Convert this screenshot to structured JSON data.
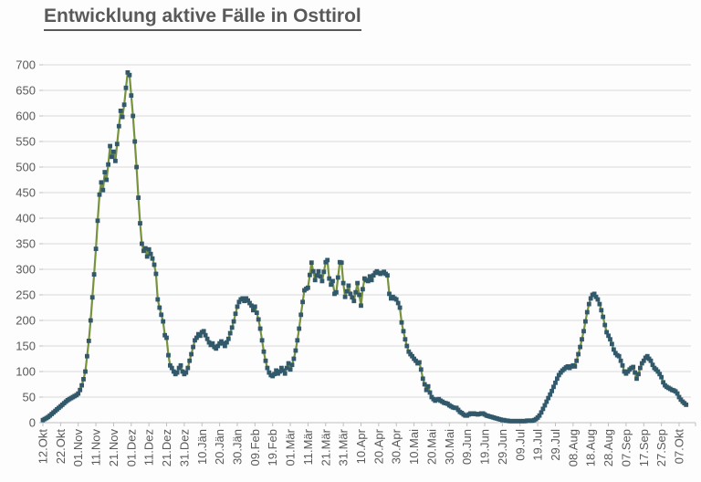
{
  "title": "Entwicklung aktive Fälle in Osttirol",
  "colors": {
    "line": "#77933C",
    "marker": "#31596B",
    "grid": "#D9D9D9",
    "axis": "#BFBFBF",
    "tick_text": "#595959",
    "title_text": "#595959",
    "background": "#FDFDFD"
  },
  "chart_data": {
    "type": "line",
    "title": "Entwicklung aktive Fälle in Osttirol",
    "xlabel": "",
    "ylabel": "",
    "ylim": [
      0,
      700
    ],
    "y_tick_step": 50,
    "y_tick_labels": [
      "0",
      "50",
      "100",
      "150",
      "200",
      "250",
      "300",
      "350",
      "400",
      "450",
      "500",
      "550",
      "600",
      "650",
      "700"
    ],
    "grid": "horizontal",
    "legend": "none",
    "marker": "square",
    "x_tick_interval_days": 10,
    "x_tick_labels": [
      "12.Okt",
      "22.Okt",
      "01.Nov",
      "11.Nov",
      "21.Nov",
      "01.Dez",
      "11.Dez",
      "21.Dez",
      "31.Dez",
      "10.Jän",
      "20.Jän",
      "30.Jän",
      "09.Feb",
      "19.Feb",
      "01.Mär",
      "11.Mär",
      "21.Mär",
      "31.Mär",
      "10.Apr",
      "20.Apr",
      "30.Apr",
      "10.Mai",
      "20.Mai",
      "30.Mai",
      "09.Jun",
      "19.Jun",
      "29.Jun",
      "09.Jul",
      "19.Jul",
      "29.Jul",
      "08.Aug",
      "18.Aug",
      "28.Aug",
      "07.Sep",
      "17.Sep",
      "27.Sep",
      "07.Okt"
    ],
    "values": [
      5,
      7,
      9,
      11,
      14,
      17,
      20,
      23,
      26,
      29,
      32,
      35,
      38,
      41,
      44,
      46,
      48,
      50,
      52,
      54,
      57,
      64,
      73,
      85,
      100,
      130,
      160,
      200,
      245,
      290,
      340,
      395,
      446,
      470,
      455,
      490,
      475,
      505,
      541,
      520,
      530,
      512,
      545,
      580,
      610,
      598,
      622,
      655,
      685,
      680,
      640,
      600,
      550,
      500,
      440,
      390,
      350,
      336,
      341,
      325,
      339,
      330,
      321,
      309,
      291,
      241,
      225,
      211,
      198,
      171,
      166,
      132,
      112,
      107,
      100,
      95,
      98,
      107,
      112,
      100,
      95,
      98,
      107,
      121,
      134,
      148,
      161,
      166,
      173,
      170,
      177,
      179,
      171,
      164,
      157,
      152,
      155,
      148,
      145,
      150,
      155,
      159,
      155,
      150,
      157,
      164,
      175,
      186,
      198,
      213,
      227,
      236,
      241,
      243,
      238,
      243,
      239,
      234,
      229,
      220,
      227,
      215,
      202,
      184,
      161,
      139,
      121,
      107,
      98,
      93,
      91,
      95,
      102,
      96,
      100,
      107,
      102,
      96,
      107,
      116,
      104,
      113,
      125,
      141,
      161,
      184,
      211,
      236,
      259,
      262,
      264,
      289,
      313,
      296,
      279,
      288,
      296,
      286,
      277,
      295,
      314,
      318,
      282,
      270,
      277,
      252,
      255,
      284,
      314,
      313,
      273,
      246,
      257,
      268,
      252,
      245,
      238,
      255,
      273,
      250,
      229,
      261,
      282,
      279,
      277,
      286,
      279,
      288,
      293,
      296,
      293,
      291,
      293,
      295,
      291,
      288,
      252,
      243,
      246,
      243,
      241,
      234,
      225,
      196,
      179,
      163,
      150,
      139,
      134,
      130,
      125,
      121,
      116,
      118,
      104,
      86,
      75,
      64,
      71,
      59,
      50,
      46,
      43,
      45,
      46,
      43,
      41,
      39,
      38,
      37,
      34,
      32,
      30,
      29,
      29,
      25,
      21,
      19,
      16,
      14,
      14,
      16,
      18,
      17,
      18,
      17,
      16,
      17,
      18,
      18,
      16,
      14,
      13,
      12,
      11,
      10,
      9,
      8,
      7,
      6,
      5,
      5,
      4,
      4,
      3,
      3,
      3,
      3,
      3,
      3,
      3,
      3,
      3,
      3,
      4,
      4,
      4,
      4,
      5,
      7,
      10,
      14,
      20,
      27,
      34,
      41,
      48,
      55,
      62,
      70,
      78,
      86,
      93,
      98,
      102,
      105,
      108,
      110,
      107,
      110,
      112,
      110,
      121,
      134,
      148,
      163,
      179,
      198,
      216,
      232,
      243,
      250,
      252,
      246,
      241,
      232,
      220,
      207,
      191,
      177,
      170,
      163,
      154,
      143,
      136,
      132,
      130,
      121,
      112,
      100,
      96,
      100,
      104,
      107,
      109,
      98,
      86,
      95,
      107,
      116,
      121,
      127,
      130,
      125,
      121,
      113,
      107,
      104,
      100,
      95,
      89,
      79,
      73,
      70,
      68,
      66,
      64,
      63,
      61,
      57,
      50,
      45,
      41,
      38,
      35
    ]
  }
}
